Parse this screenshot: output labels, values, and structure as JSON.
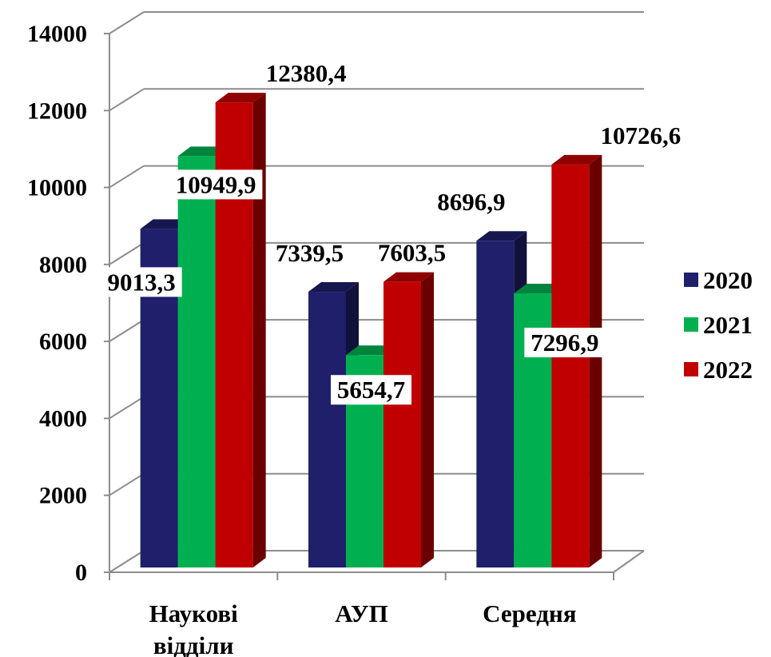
{
  "chart_data": {
    "type": "bar",
    "categories": [
      [
        "Наукові",
        "відділи"
      ],
      [
        "АУП"
      ],
      [
        "Середня"
      ]
    ],
    "series": [
      {
        "name": "2020",
        "values": [
          9013.3,
          7339.5,
          8696.9
        ],
        "labels": [
          "9013,3",
          "7339,5",
          "8696,9"
        ],
        "color": "#1F1F6B"
      },
      {
        "name": "2021",
        "values": [
          10949.9,
          5654.7,
          7296.9
        ],
        "labels": [
          "10949,9",
          "5654,7",
          "7296,9"
        ],
        "color": "#00B050"
      },
      {
        "name": "2022",
        "values": [
          12380.4,
          7603.5,
          10726.6
        ],
        "labels": [
          "12380,4",
          "7603,5",
          "10726,6"
        ],
        "color": "#C00000"
      }
    ],
    "yticks": [
      "0",
      "2000",
      "4000",
      "6000",
      "8000",
      "10000",
      "12000",
      "14000"
    ],
    "ylim": [
      0,
      14000
    ],
    "grid": true,
    "legend": "right",
    "xlabel": "",
    "ylabel": "",
    "title": ""
  }
}
